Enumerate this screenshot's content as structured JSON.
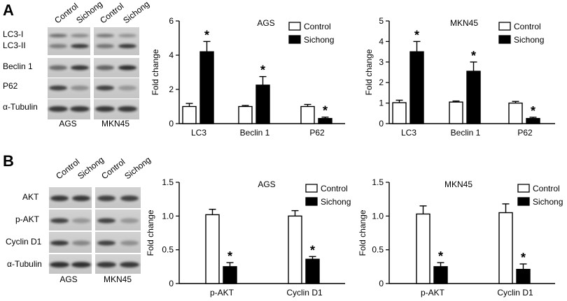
{
  "panels": {
    "A": {
      "letter": "A",
      "blot": {
        "col_labels": [
          "Control",
          "Sichong",
          "Control",
          "Sichong"
        ],
        "row_labels": [
          "LC3-I",
          "LC3-II",
          "Beclin 1",
          "P62",
          "α-Tubulin"
        ],
        "cell_lines": [
          "AGS",
          "MKN45"
        ]
      }
    },
    "B": {
      "letter": "B",
      "blot": {
        "col_labels": [
          "Control",
          "Sichong",
          "Control",
          "Sichong"
        ],
        "row_labels": [
          "AKT",
          "p-AKT",
          "Cyclin D1",
          "α-Tubulin"
        ],
        "cell_lines": [
          "AGS",
          "MKN45"
        ]
      }
    }
  },
  "chart_data": [
    {
      "id": "A-AGS",
      "type": "bar",
      "title": "AGS",
      "ylabel": "Fold change",
      "xlabel": "",
      "ylim": [
        0,
        6
      ],
      "yticks": [
        0,
        2,
        4,
        6
      ],
      "ytick_labels": [
        "0",
        "2",
        "4",
        "6"
      ],
      "categories": [
        "LC3",
        "Beclin 1",
        "P62"
      ],
      "series": [
        {
          "name": "Control",
          "values": [
            1.0,
            1.0,
            1.0
          ],
          "errors": [
            0.18,
            0.06,
            0.12
          ],
          "color": "#ffffff"
        },
        {
          "name": "Sichong",
          "values": [
            4.2,
            2.25,
            0.3
          ],
          "errors": [
            0.6,
            0.5,
            0.08
          ],
          "color": "#000000"
        }
      ],
      "significance": [
        "*",
        "*",
        "*"
      ],
      "legend": "top-right",
      "grid": false
    },
    {
      "id": "A-MKN45",
      "type": "bar",
      "title": "MKN45",
      "ylabel": "Fold change",
      "xlabel": "",
      "ylim": [
        0,
        5
      ],
      "yticks": [
        0,
        1,
        2,
        3,
        4,
        5
      ],
      "ytick_labels": [
        "0",
        "1",
        "2",
        "3",
        "4",
        "5"
      ],
      "categories": [
        "LC3",
        "Beclin 1",
        "P62"
      ],
      "series": [
        {
          "name": "Control",
          "values": [
            1.02,
            1.05,
            1.0
          ],
          "errors": [
            0.12,
            0.05,
            0.08
          ],
          "color": "#ffffff"
        },
        {
          "name": "Sichong",
          "values": [
            3.5,
            2.55,
            0.25
          ],
          "errors": [
            0.5,
            0.45,
            0.06
          ],
          "color": "#000000"
        }
      ],
      "significance": [
        "*",
        "*",
        "*"
      ],
      "legend": "top-right",
      "grid": false
    },
    {
      "id": "B-AGS",
      "type": "bar",
      "title": "AGS",
      "ylabel": "Fold change",
      "xlabel": "",
      "ylim": [
        0,
        1.5
      ],
      "yticks": [
        0,
        0.5,
        1.0,
        1.5
      ],
      "ytick_labels": [
        "0",
        "0.5",
        "1.0",
        "1.5"
      ],
      "categories": [
        "p-AKT",
        "Cyclin D1"
      ],
      "series": [
        {
          "name": "Control",
          "values": [
            1.02,
            1.0
          ],
          "errors": [
            0.08,
            0.08
          ],
          "color": "#ffffff"
        },
        {
          "name": "Sichong",
          "values": [
            0.25,
            0.36
          ],
          "errors": [
            0.06,
            0.04
          ],
          "color": "#000000"
        }
      ],
      "significance": [
        "*",
        "*"
      ],
      "legend": "top-right",
      "grid": false
    },
    {
      "id": "B-MKN45",
      "type": "bar",
      "title": "MKN45",
      "ylabel": "Fold change",
      "xlabel": "",
      "ylim": [
        0,
        1.5
      ],
      "yticks": [
        0,
        0.5,
        1.0,
        1.5
      ],
      "ytick_labels": [
        "0",
        "0.5",
        "1.0",
        "1.5"
      ],
      "categories": [
        "p-AKT",
        "Cyclin D1"
      ],
      "series": [
        {
          "name": "Control",
          "values": [
            1.03,
            1.05
          ],
          "errors": [
            0.12,
            0.13
          ],
          "color": "#ffffff"
        },
        {
          "name": "Sichong",
          "values": [
            0.25,
            0.21
          ],
          "errors": [
            0.06,
            0.08
          ],
          "color": "#000000"
        }
      ],
      "significance": [
        "*",
        "*"
      ],
      "legend": "top-right",
      "grid": false
    }
  ]
}
